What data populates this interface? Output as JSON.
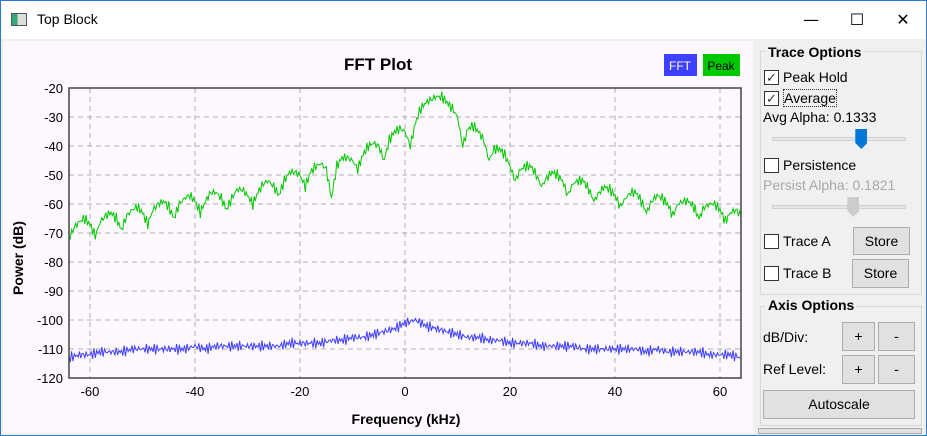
{
  "window": {
    "title": "Top Block",
    "minimize": "—",
    "maximize": "☐",
    "close": "✕"
  },
  "panel": {
    "trace_options_title": "Trace Options",
    "peak_hold": {
      "label": "Peak Hold",
      "checked": true
    },
    "average": {
      "label": "Average",
      "checked": true
    },
    "avg_alpha_label": "Avg Alpha: 0.1333",
    "avg_alpha_value": 0.1333,
    "persistence": {
      "label": "Persistence",
      "checked": false
    },
    "persist_alpha_label": "Persist Alpha: 0.1821",
    "persist_alpha_value": 0.1821,
    "trace_a": {
      "label": "Trace A",
      "checked": false
    },
    "trace_b": {
      "label": "Trace B",
      "checked": false
    },
    "store_label": "Store",
    "axis_options_title": "Axis Options",
    "db_div_label": "dB/Div:",
    "ref_level_label": "Ref Level:",
    "plus": "+",
    "minus": "-",
    "autoscale_label": "Autoscale",
    "check_glyph": "✓"
  },
  "colors": {
    "fft": "#3f3fff",
    "peak": "#00c800",
    "grid": "#b0b0b0"
  },
  "chart_data": {
    "type": "line",
    "title": "FFT Plot",
    "xlabel": "Frequency (kHz)",
    "ylabel": "Power (dB)",
    "xlim": [
      -64,
      64
    ],
    "ylim": [
      -120,
      -20
    ],
    "xticks": [
      -60,
      -40,
      -20,
      0,
      20,
      40,
      60
    ],
    "yticks": [
      -20,
      -30,
      -40,
      -50,
      -60,
      -70,
      -80,
      -90,
      -100,
      -110,
      -120
    ],
    "grid": true,
    "legend": {
      "placement": "top-right",
      "entries": [
        "FFT",
        "Peak"
      ]
    },
    "series": [
      {
        "name": "Peak",
        "x_start": -64,
        "x_step": 1,
        "values": [
          -72,
          -68,
          -66,
          -65,
          -67,
          -71,
          -66,
          -64,
          -63,
          -65,
          -69,
          -64,
          -62,
          -61,
          -63,
          -67,
          -62,
          -60,
          -59,
          -61,
          -65,
          -60,
          -58,
          -57,
          -59,
          -63,
          -59,
          -56,
          -56,
          -58,
          -62,
          -58,
          -55,
          -55,
          -57,
          -60,
          -56,
          -53,
          -52,
          -54,
          -57,
          -52,
          -49,
          -49,
          -50,
          -54,
          -49,
          -47,
          -46,
          -48,
          -58,
          -47,
          -44,
          -44,
          -45,
          -48,
          -43,
          -40,
          -39,
          -40,
          -45,
          -38,
          -35,
          -34,
          -35,
          -40,
          -32,
          -27,
          -25,
          -24,
          -23,
          -23,
          -25,
          -27,
          -30,
          -40,
          -34,
          -33,
          -35,
          -38,
          -45,
          -41,
          -41,
          -43,
          -47,
          -52,
          -48,
          -47,
          -47,
          -50,
          -54,
          -51,
          -49,
          -50,
          -52,
          -57,
          -53,
          -52,
          -52,
          -55,
          -59,
          -56,
          -54,
          -55,
          -57,
          -61,
          -58,
          -56,
          -56,
          -59,
          -63,
          -59,
          -57,
          -58,
          -60,
          -64,
          -60,
          -59,
          -59,
          -61,
          -65,
          -61,
          -60,
          -60,
          -62,
          -66,
          -63,
          -62,
          -64
        ]
      },
      {
        "name": "FFT",
        "x_start": -64,
        "x_step": 2,
        "values": [
          -113,
          -112,
          -112,
          -111,
          -111,
          -111,
          -110,
          -110,
          -110,
          -110,
          -110,
          -110,
          -109,
          -110,
          -109,
          -109,
          -109,
          -109,
          -109,
          -109,
          -109,
          -108,
          -108,
          -108,
          -108,
          -107,
          -107,
          -106,
          -106,
          -105,
          -104,
          -103,
          -101,
          -100,
          -102,
          -103,
          -104,
          -105,
          -106,
          -106,
          -107,
          -107,
          -108,
          -108,
          -108,
          -109,
          -109,
          -109,
          -109,
          -110,
          -110,
          -110,
          -110,
          -110,
          -110,
          -111,
          -110,
          -111,
          -111,
          -111,
          -111,
          -112,
          -112,
          -112,
          -113
        ]
      }
    ]
  }
}
